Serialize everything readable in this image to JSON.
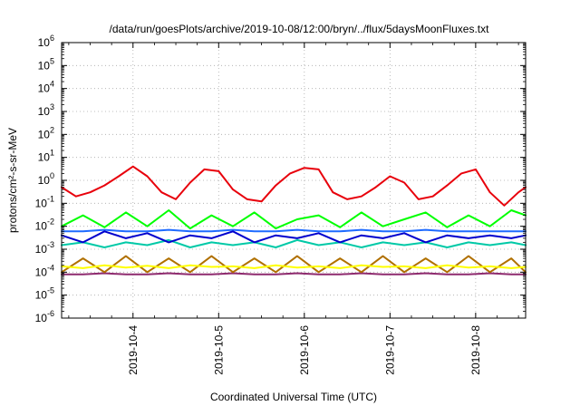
{
  "chart_data": {
    "type": "line",
    "title": "/data/run/goesPlots/archive/2019-10-08/12:00/bryn/../flux/5daysMoonFluxes.txt",
    "xlabel": "Coordinated Universal Time (UTC)",
    "ylabel": "protons/cm²-s-sr-MeV",
    "yscale": "log",
    "ylim": [
      1e-06,
      1000000.0
    ],
    "xlim": [
      "2019-10-03 04:00",
      "2019-10-08 14:00"
    ],
    "yticks": [
      {
        "base": "10",
        "exp": "-6"
      },
      {
        "base": "10",
        "exp": "-5"
      },
      {
        "base": "10",
        "exp": "-4"
      },
      {
        "base": "10",
        "exp": "-3"
      },
      {
        "base": "10",
        "exp": "-2"
      },
      {
        "base": "10",
        "exp": "-1"
      },
      {
        "base": "10",
        "exp": "0"
      },
      {
        "base": "10",
        "exp": "1"
      },
      {
        "base": "10",
        "exp": "2"
      },
      {
        "base": "10",
        "exp": "3"
      },
      {
        "base": "10",
        "exp": "4"
      },
      {
        "base": "10",
        "exp": "5"
      },
      {
        "base": "10",
        "exp": "6"
      }
    ],
    "xticks": [
      "2019-10-4",
      "2019-10-5",
      "2019-10-6",
      "2019-10-7",
      "2019-10-8"
    ],
    "grid": true,
    "series": [
      {
        "color": "#e8000b",
        "x": [
          "2019-10-03 04:00",
          "2019-10-03 08:00",
          "2019-10-03 12:00",
          "2019-10-03 16:00",
          "2019-10-03 20:00",
          "2019-10-04 00:00",
          "2019-10-04 04:00",
          "2019-10-04 08:00",
          "2019-10-04 12:00",
          "2019-10-04 16:00",
          "2019-10-04 20:00",
          "2019-10-05 00:00",
          "2019-10-05 04:00",
          "2019-10-05 08:00",
          "2019-10-05 12:00",
          "2019-10-05 16:00",
          "2019-10-05 20:00",
          "2019-10-06 00:00",
          "2019-10-06 04:00",
          "2019-10-06 08:00",
          "2019-10-06 12:00",
          "2019-10-06 16:00",
          "2019-10-06 20:00",
          "2019-10-07 00:00",
          "2019-10-07 04:00",
          "2019-10-07 08:00",
          "2019-10-07 12:00",
          "2019-10-07 16:00",
          "2019-10-07 20:00",
          "2019-10-08 00:00",
          "2019-10-08 04:00",
          "2019-10-08 08:00",
          "2019-10-08 12:00",
          "2019-10-08 14:00"
        ],
        "y": [
          0.5,
          0.2,
          0.3,
          0.6,
          1.5,
          4.0,
          1.5,
          0.3,
          0.15,
          0.8,
          3.0,
          2.5,
          0.4,
          0.15,
          0.12,
          0.6,
          2.0,
          3.5,
          3.0,
          0.3,
          0.15,
          0.2,
          0.5,
          1.5,
          0.8,
          0.15,
          0.2,
          0.6,
          2.0,
          3.0,
          0.3,
          0.08,
          0.3,
          0.5
        ]
      },
      {
        "color": "#00ff00",
        "x": [
          "2019-10-03 04:00",
          "2019-10-03 10:00",
          "2019-10-03 16:00",
          "2019-10-03 22:00",
          "2019-10-04 04:00",
          "2019-10-04 10:00",
          "2019-10-04 16:00",
          "2019-10-04 22:00",
          "2019-10-05 04:00",
          "2019-10-05 10:00",
          "2019-10-05 16:00",
          "2019-10-05 22:00",
          "2019-10-06 04:00",
          "2019-10-06 10:00",
          "2019-10-06 16:00",
          "2019-10-06 22:00",
          "2019-10-07 04:00",
          "2019-10-07 10:00",
          "2019-10-07 16:00",
          "2019-10-07 22:00",
          "2019-10-08 04:00",
          "2019-10-08 10:00",
          "2019-10-08 14:00"
        ],
        "y": [
          0.01,
          0.03,
          0.009,
          0.04,
          0.01,
          0.05,
          0.008,
          0.03,
          0.01,
          0.04,
          0.008,
          0.02,
          0.03,
          0.009,
          0.04,
          0.01,
          0.02,
          0.04,
          0.009,
          0.03,
          0.01,
          0.05,
          0.03
        ]
      },
      {
        "color": "#1f6bff",
        "x": [
          "2019-10-03 04:00",
          "2019-10-03 10:00",
          "2019-10-03 16:00",
          "2019-10-03 22:00",
          "2019-10-04 04:00",
          "2019-10-04 10:00",
          "2019-10-04 16:00",
          "2019-10-04 22:00",
          "2019-10-05 04:00",
          "2019-10-05 10:00",
          "2019-10-05 16:00",
          "2019-10-05 22:00",
          "2019-10-06 04:00",
          "2019-10-06 10:00",
          "2019-10-06 16:00",
          "2019-10-06 22:00",
          "2019-10-07 04:00",
          "2019-10-07 10:00",
          "2019-10-07 16:00",
          "2019-10-07 22:00",
          "2019-10-08 04:00",
          "2019-10-08 10:00",
          "2019-10-08 14:00"
        ],
        "y": [
          0.006,
          0.006,
          0.007,
          0.006,
          0.006,
          0.007,
          0.006,
          0.006,
          0.007,
          0.006,
          0.006,
          0.007,
          0.006,
          0.006,
          0.007,
          0.006,
          0.006,
          0.007,
          0.006,
          0.006,
          0.006,
          0.006,
          0.006
        ]
      },
      {
        "color": "#0000cd",
        "x": [
          "2019-10-03 04:00",
          "2019-10-03 10:00",
          "2019-10-03 16:00",
          "2019-10-03 22:00",
          "2019-10-04 04:00",
          "2019-10-04 10:00",
          "2019-10-04 16:00",
          "2019-10-04 22:00",
          "2019-10-05 04:00",
          "2019-10-05 10:00",
          "2019-10-05 16:00",
          "2019-10-05 22:00",
          "2019-10-06 04:00",
          "2019-10-06 10:00",
          "2019-10-06 16:00",
          "2019-10-06 22:00",
          "2019-10-07 04:00",
          "2019-10-07 10:00",
          "2019-10-07 16:00",
          "2019-10-07 22:00",
          "2019-10-08 04:00",
          "2019-10-08 10:00",
          "2019-10-08 14:00"
        ],
        "y": [
          0.004,
          0.002,
          0.006,
          0.003,
          0.005,
          0.002,
          0.004,
          0.003,
          0.006,
          0.002,
          0.004,
          0.003,
          0.005,
          0.002,
          0.004,
          0.003,
          0.005,
          0.002,
          0.004,
          0.003,
          0.004,
          0.003,
          0.004
        ]
      },
      {
        "color": "#00c9a7",
        "x": [
          "2019-10-03 04:00",
          "2019-10-03 10:00",
          "2019-10-03 16:00",
          "2019-10-03 22:00",
          "2019-10-04 04:00",
          "2019-10-04 10:00",
          "2019-10-04 16:00",
          "2019-10-04 22:00",
          "2019-10-05 04:00",
          "2019-10-05 10:00",
          "2019-10-05 16:00",
          "2019-10-05 22:00",
          "2019-10-06 04:00",
          "2019-10-06 10:00",
          "2019-10-06 16:00",
          "2019-10-06 22:00",
          "2019-10-07 04:00",
          "2019-10-07 10:00",
          "2019-10-07 16:00",
          "2019-10-07 22:00",
          "2019-10-08 04:00",
          "2019-10-08 10:00",
          "2019-10-08 14:00"
        ],
        "y": [
          0.0015,
          0.002,
          0.0012,
          0.002,
          0.0015,
          0.0025,
          0.0012,
          0.002,
          0.0015,
          0.002,
          0.0012,
          0.0025,
          0.0015,
          0.002,
          0.0012,
          0.002,
          0.0015,
          0.002,
          0.0012,
          0.002,
          0.0015,
          0.002,
          0.0015
        ]
      },
      {
        "color": "#ffff00",
        "x": [
          "2019-10-03 04:00",
          "2019-10-03 10:00",
          "2019-10-03 16:00",
          "2019-10-03 22:00",
          "2019-10-04 04:00",
          "2019-10-04 10:00",
          "2019-10-04 16:00",
          "2019-10-04 22:00",
          "2019-10-05 04:00",
          "2019-10-05 10:00",
          "2019-10-05 16:00",
          "2019-10-05 22:00",
          "2019-10-06 04:00",
          "2019-10-06 10:00",
          "2019-10-06 16:00",
          "2019-10-06 22:00",
          "2019-10-07 04:00",
          "2019-10-07 10:00",
          "2019-10-07 16:00",
          "2019-10-07 22:00",
          "2019-10-08 04:00",
          "2019-10-08 10:00",
          "2019-10-08 14:00"
        ],
        "y": [
          0.00018,
          0.00015,
          0.0002,
          0.00016,
          0.00019,
          0.00015,
          0.0002,
          0.00017,
          0.00018,
          0.00015,
          0.0002,
          0.00016,
          0.00018,
          0.00015,
          0.0002,
          0.00017,
          0.00018,
          0.00015,
          0.0002,
          0.00016,
          0.00018,
          0.00015,
          0.00017
        ]
      },
      {
        "color": "#b07000",
        "x": [
          "2019-10-03 04:00",
          "2019-10-03 10:00",
          "2019-10-03 16:00",
          "2019-10-03 22:00",
          "2019-10-04 04:00",
          "2019-10-04 10:00",
          "2019-10-04 16:00",
          "2019-10-04 22:00",
          "2019-10-05 04:00",
          "2019-10-05 10:00",
          "2019-10-05 16:00",
          "2019-10-05 22:00",
          "2019-10-06 04:00",
          "2019-10-06 10:00",
          "2019-10-06 16:00",
          "2019-10-06 22:00",
          "2019-10-07 04:00",
          "2019-10-07 10:00",
          "2019-10-07 16:00",
          "2019-10-07 22:00",
          "2019-10-08 04:00",
          "2019-10-08 10:00",
          "2019-10-08 14:00"
        ],
        "y": [
          0.0001,
          0.0004,
          0.0001,
          0.0005,
          0.0001,
          0.0004,
          0.0001,
          0.0005,
          0.0001,
          0.0004,
          0.0001,
          0.0005,
          0.0001,
          0.0004,
          0.0001,
          0.0005,
          0.0001,
          0.0004,
          0.0001,
          0.0005,
          0.0001,
          0.0004,
          0.0001
        ]
      },
      {
        "color": "#8e2a6e",
        "x": [
          "2019-10-03 04:00",
          "2019-10-03 10:00",
          "2019-10-03 16:00",
          "2019-10-03 22:00",
          "2019-10-04 04:00",
          "2019-10-04 10:00",
          "2019-10-04 16:00",
          "2019-10-04 22:00",
          "2019-10-05 04:00",
          "2019-10-05 10:00",
          "2019-10-05 16:00",
          "2019-10-05 22:00",
          "2019-10-06 04:00",
          "2019-10-06 10:00",
          "2019-10-06 16:00",
          "2019-10-06 22:00",
          "2019-10-07 04:00",
          "2019-10-07 10:00",
          "2019-10-07 16:00",
          "2019-10-07 22:00",
          "2019-10-08 04:00",
          "2019-10-08 10:00",
          "2019-10-08 14:00"
        ],
        "y": [
          8e-05,
          8e-05,
          9e-05,
          8e-05,
          8e-05,
          9e-05,
          8e-05,
          8e-05,
          9e-05,
          8e-05,
          8e-05,
          9e-05,
          8e-05,
          8e-05,
          9e-05,
          8e-05,
          8e-05,
          9e-05,
          8e-05,
          8e-05,
          9e-05,
          8e-05,
          8e-05
        ]
      }
    ]
  }
}
